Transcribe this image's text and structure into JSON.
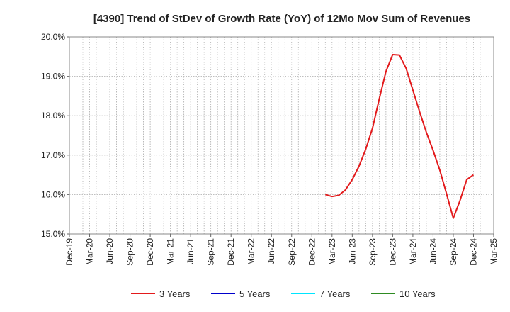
{
  "chart_data": {
    "type": "line",
    "title": "[4390]  Trend of StDev of Growth Rate (YoY) of 12Mo Mov Sum of Revenues",
    "xlabel": "",
    "ylabel": "",
    "ylim": [
      15.0,
      20.0
    ],
    "yticks": [
      "15.0%",
      "16.0%",
      "17.0%",
      "18.0%",
      "19.0%",
      "20.0%"
    ],
    "ytick_values": [
      15.0,
      16.0,
      17.0,
      18.0,
      19.0,
      20.0
    ],
    "xticks": [
      "Dec-19",
      "Mar-20",
      "Jun-20",
      "Sep-20",
      "Dec-20",
      "Mar-21",
      "Jun-21",
      "Sep-21",
      "Dec-21",
      "Mar-22",
      "Jun-22",
      "Sep-22",
      "Dec-22",
      "Mar-23",
      "Jun-23",
      "Sep-23",
      "Dec-23",
      "Mar-24",
      "Jun-24",
      "Sep-24",
      "Dec-24",
      "Mar-25"
    ],
    "legend": [
      "3 Years",
      "5 Years",
      "7 Years",
      "10 Years"
    ],
    "legend_position": "bottom",
    "series": [
      {
        "name": "3 Years",
        "color": "#e31a1c",
        "x": [
          "Feb-23",
          "Mar-23",
          "Apr-23",
          "May-23",
          "Jun-23",
          "Jul-23",
          "Aug-23",
          "Sep-23",
          "Oct-23",
          "Nov-23",
          "Dec-23",
          "Jan-24",
          "Feb-24",
          "Mar-24",
          "Apr-24",
          "May-24",
          "Jun-24",
          "Jul-24",
          "Aug-24",
          "Sep-24",
          "Oct-24",
          "Nov-24",
          "Dec-24"
        ],
        "values": [
          16.0,
          15.95,
          15.98,
          16.12,
          16.38,
          16.72,
          17.15,
          17.68,
          18.42,
          19.12,
          19.55,
          19.54,
          19.2,
          18.65,
          18.1,
          17.58,
          17.12,
          16.62,
          16.02,
          15.4,
          15.85,
          16.38,
          16.5
        ]
      },
      {
        "name": "5 Years",
        "color": "#0000cc",
        "x": [],
        "values": []
      },
      {
        "name": "7 Years",
        "color": "#00e5ff",
        "x": [],
        "values": []
      },
      {
        "name": "10 Years",
        "color": "#2e8b22",
        "x": [],
        "values": []
      }
    ]
  }
}
